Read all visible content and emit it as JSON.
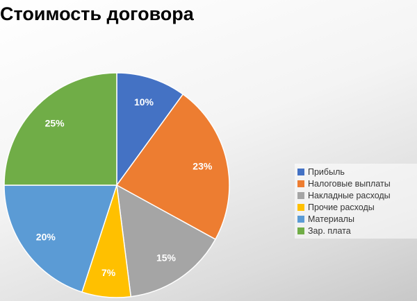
{
  "chart_data": {
    "type": "pie",
    "title": "Стоимость договора",
    "slices": [
      {
        "label": "Прибыль",
        "value": 10,
        "value_label": "10%",
        "color": "#4472C4"
      },
      {
        "label": "Налоговые выплаты",
        "value": 23,
        "value_label": "23%",
        "color": "#ED7D31"
      },
      {
        "label": "Накладные расходы",
        "value": 15,
        "value_label": "15%",
        "color": "#A5A5A5"
      },
      {
        "label": "Прочие расходы",
        "value": 7,
        "value_label": "7%",
        "color": "#FFC000"
      },
      {
        "label": "Материалы",
        "value": 20,
        "value_label": "20%",
        "color": "#5B9BD5"
      },
      {
        "label": "Зар. плата",
        "value": 25,
        "value_label": "25%",
        "color": "#70AD47"
      }
    ],
    "start_angle": "12 o'clock",
    "direction": "clockwise",
    "legend_position": "right",
    "data_label_color": "#FFFFFF"
  }
}
